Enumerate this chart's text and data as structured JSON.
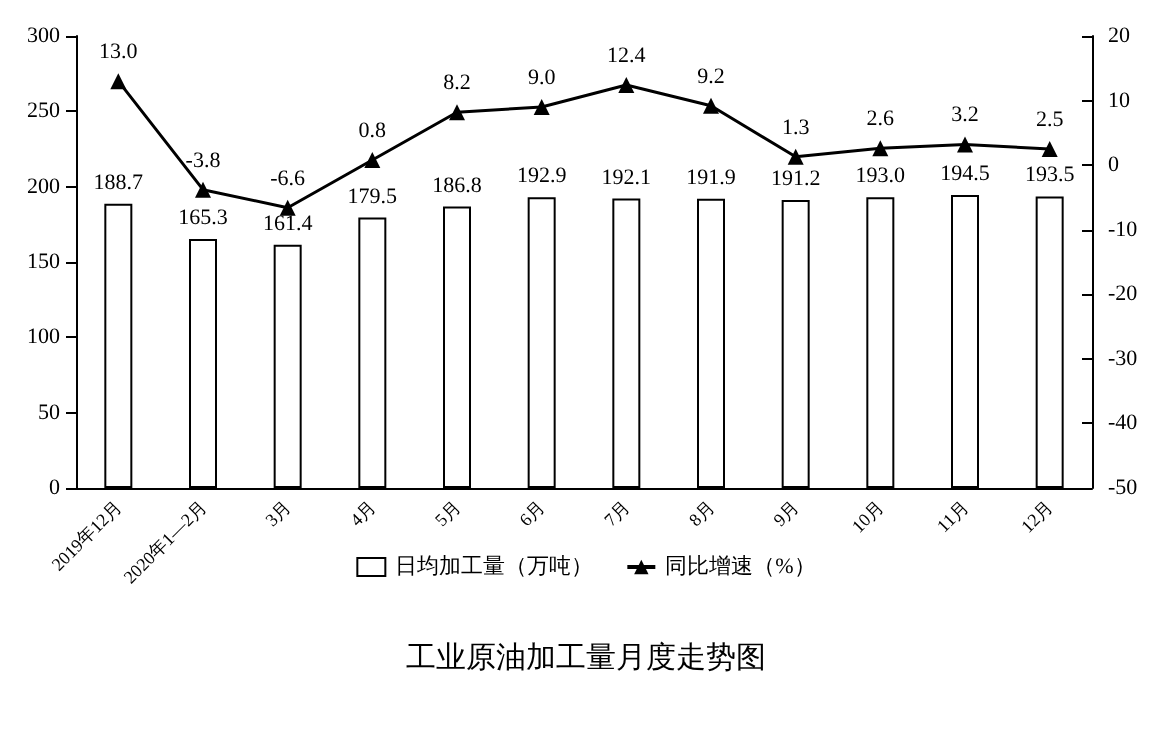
{
  "chart_data": {
    "type": "bar",
    "title": "工业原油加工量月度走势图",
    "categories": [
      "2019年12月",
      "2020年1—2月",
      "3月",
      "4月",
      "5月",
      "6月",
      "7月",
      "8月",
      "9月",
      "10月",
      "11月",
      "12月"
    ],
    "series": [
      {
        "name": "日均加工量（万吨）",
        "color": "#ffffff",
        "values": [
          188.7,
          165.3,
          161.4,
          179.5,
          186.8,
          192.9,
          192.1,
          191.9,
          191.2,
          193.0,
          194.5,
          193.5
        ],
        "value_labels": [
          "188.7",
          "165.3",
          "161.4",
          "179.5",
          "186.8",
          "192.9",
          "192.1",
          "191.9",
          "191.2",
          "193.0",
          "194.5",
          "193.5"
        ]
      },
      {
        "name": "同比增速（%）",
        "type": "line",
        "axis": "y2",
        "color": "#000000",
        "marker": "triangle",
        "values": [
          13.0,
          -3.8,
          -6.6,
          0.8,
          8.2,
          9.0,
          12.4,
          9.2,
          1.3,
          2.6,
          3.2,
          2.5
        ],
        "value_labels": [
          "13.0",
          "-3.8",
          "-6.6",
          "0.8",
          "8.2",
          "9.0",
          "12.4",
          "9.2",
          "1.3",
          "2.6",
          "3.2",
          "2.5"
        ]
      }
    ],
    "ylim": [
      0,
      300
    ],
    "yticks": [
      0,
      50,
      100,
      150,
      200,
      250,
      300
    ],
    "y2lim": [
      -50,
      20
    ],
    "y2ticks": [
      -50,
      -40,
      -30,
      -20,
      -10,
      0,
      10,
      20
    ],
    "legend": "bottom",
    "grid": false
  }
}
